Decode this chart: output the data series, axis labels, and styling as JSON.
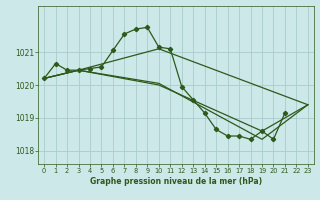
{
  "title": "Graphe pression niveau de la mer (hPa)",
  "bg_color": "#cce8e8",
  "grid_color": "#aacccc",
  "line_color": "#2d5a1b",
  "xlim": [
    -0.5,
    23.5
  ],
  "ylim": [
    1017.6,
    1022.4
  ],
  "yticks": [
    1018,
    1019,
    1020,
    1021
  ],
  "xticks": [
    0,
    1,
    2,
    3,
    4,
    5,
    6,
    7,
    8,
    9,
    10,
    11,
    12,
    13,
    14,
    15,
    16,
    17,
    18,
    19,
    20,
    21,
    22,
    23
  ],
  "line1_x": [
    0,
    1,
    2,
    3,
    4,
    5,
    6,
    7,
    8,
    9,
    10,
    11,
    12,
    13,
    14,
    15,
    16,
    17,
    18,
    19,
    20,
    21
  ],
  "line1_y": [
    1020.2,
    1020.65,
    1020.45,
    1020.45,
    1020.5,
    1020.55,
    1021.05,
    1021.55,
    1021.7,
    1021.75,
    1021.15,
    1021.1,
    1019.95,
    1019.55,
    1019.15,
    1018.65,
    1018.45,
    1018.45,
    1018.35,
    1018.6,
    1018.35,
    1019.15
  ],
  "line2_x": [
    0,
    3,
    10,
    23
  ],
  "line2_y": [
    1020.2,
    1020.45,
    1021.1,
    1019.4
  ],
  "line3_x": [
    0,
    3,
    10,
    19,
    23
  ],
  "line3_y": [
    1020.2,
    1020.45,
    1020.05,
    1018.35,
    1019.4
  ],
  "line4_x": [
    0,
    3,
    10,
    19,
    23
  ],
  "line4_y": [
    1020.2,
    1020.45,
    1020.0,
    1018.6,
    1019.4
  ]
}
